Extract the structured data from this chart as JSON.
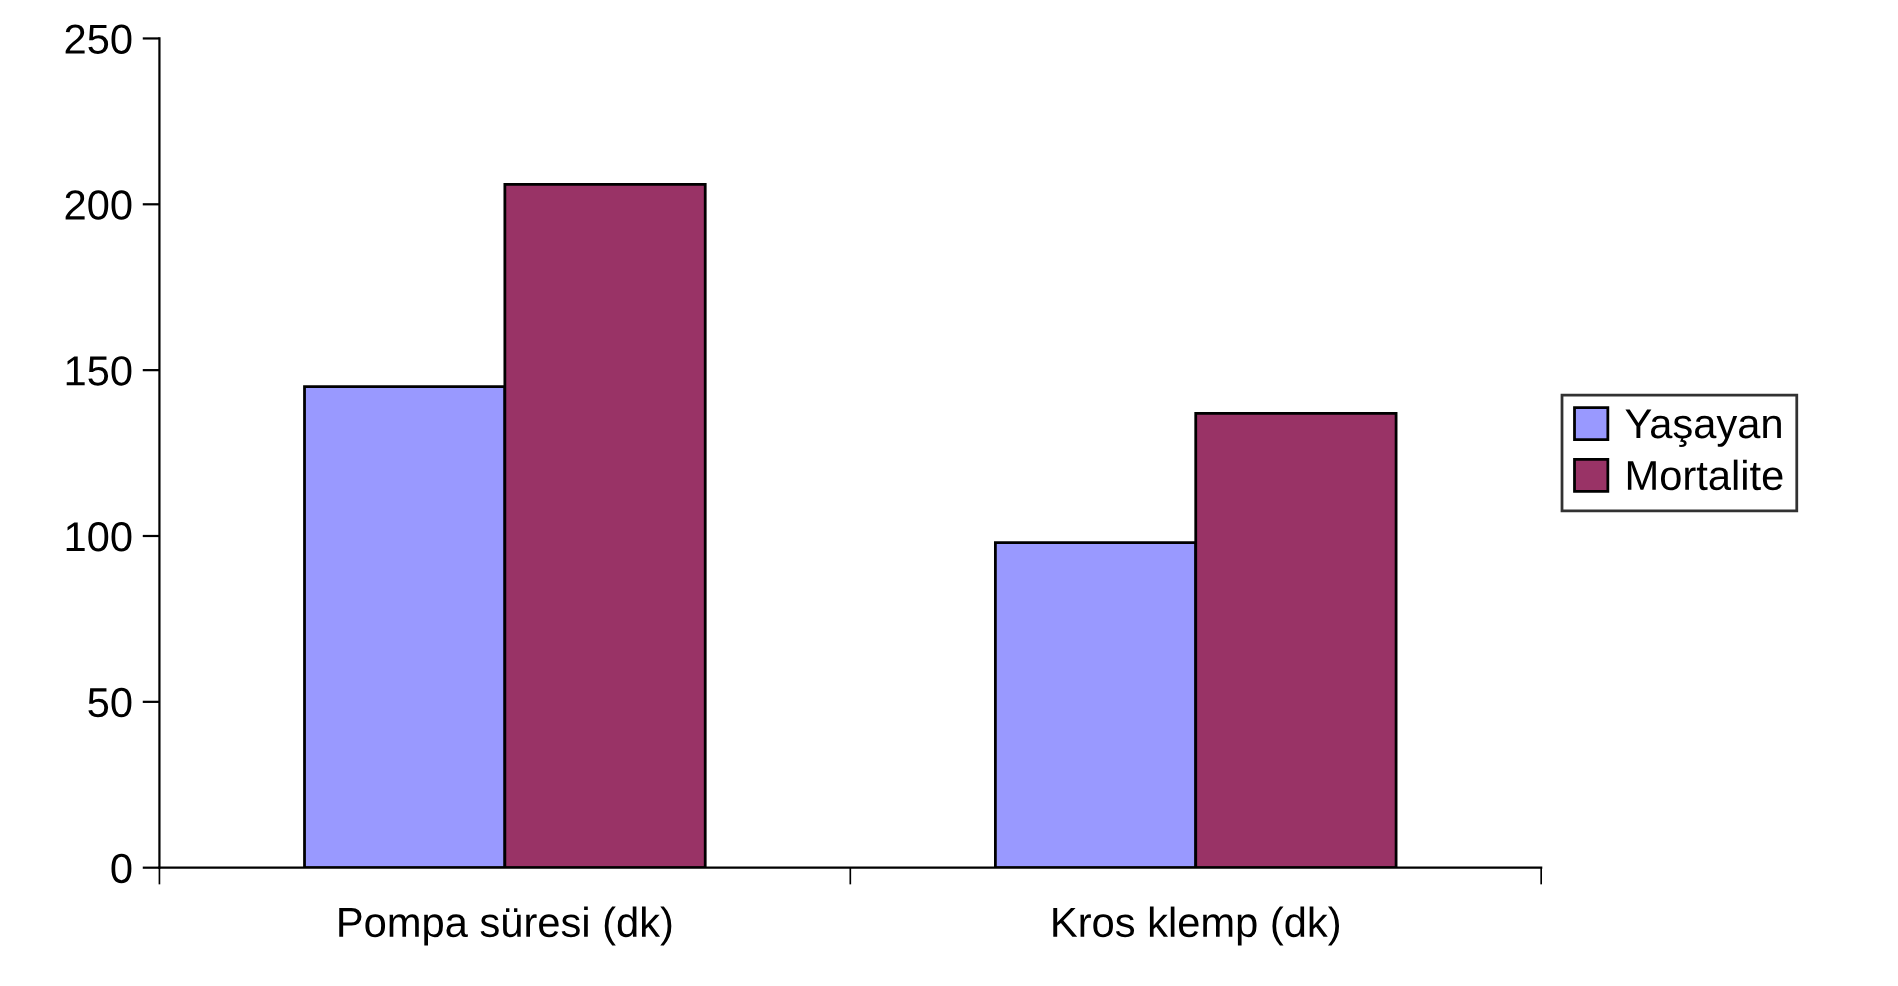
{
  "chart_data": {
    "type": "bar",
    "categories": [
      "Pompa süresi (dk)",
      "Kros klemp (dk)"
    ],
    "series": [
      {
        "name": "Yaşayan",
        "color": "#9999ff",
        "values": [
          145,
          98
        ]
      },
      {
        "name": "Mortalite",
        "color": "#993366",
        "values": [
          206,
          137
        ]
      }
    ],
    "ylim": [
      0,
      250
    ],
    "yticks": [
      0,
      50,
      100,
      150,
      200,
      250
    ],
    "grid": false,
    "legend": "right"
  }
}
